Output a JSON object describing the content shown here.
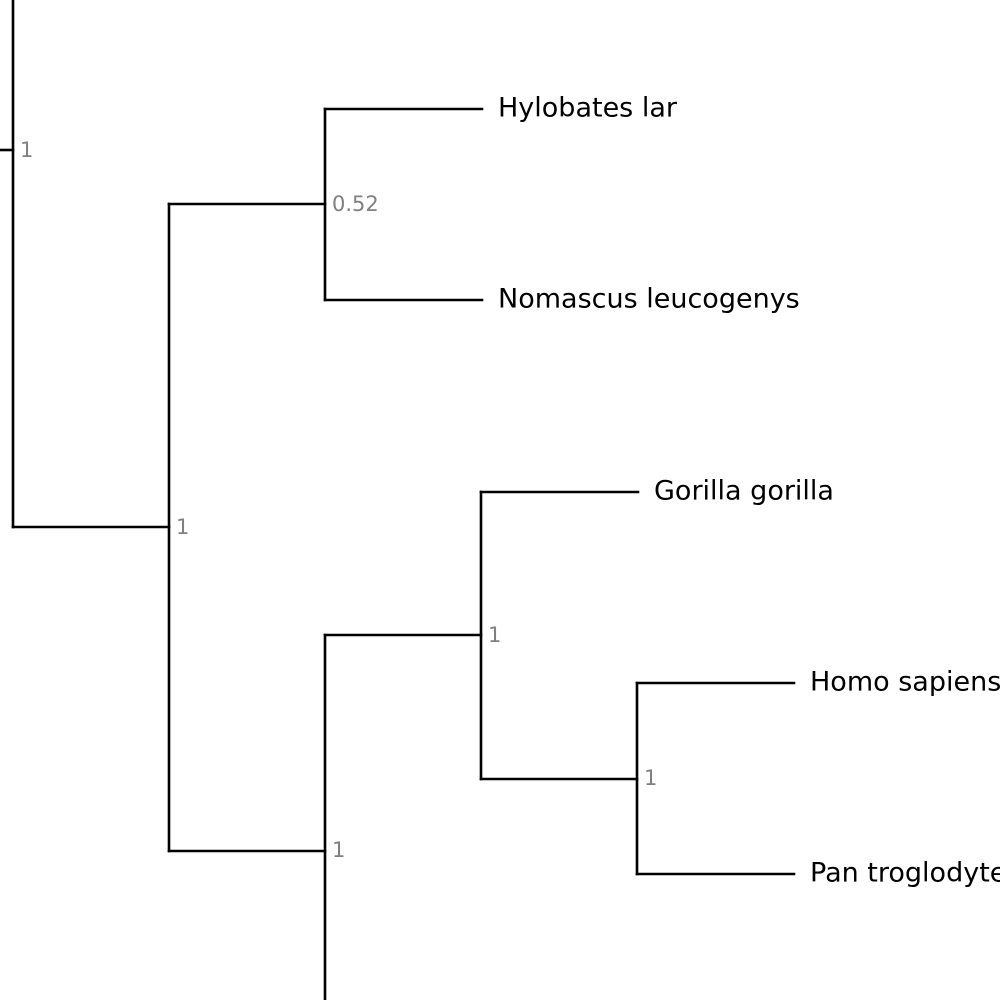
{
  "tree": {
    "taxa": {
      "hylobates": "Hylobates lar",
      "nomascus": "Nomascus leucogenys",
      "gorilla": "Gorilla gorilla",
      "homo": "Homo sapiens",
      "pan": "Pan troglodytes"
    },
    "support": {
      "root": "1",
      "gibbons": "0.52",
      "apes": "1",
      "great_apes": "1",
      "african_apes": "1",
      "human_chimp": "1"
    }
  }
}
